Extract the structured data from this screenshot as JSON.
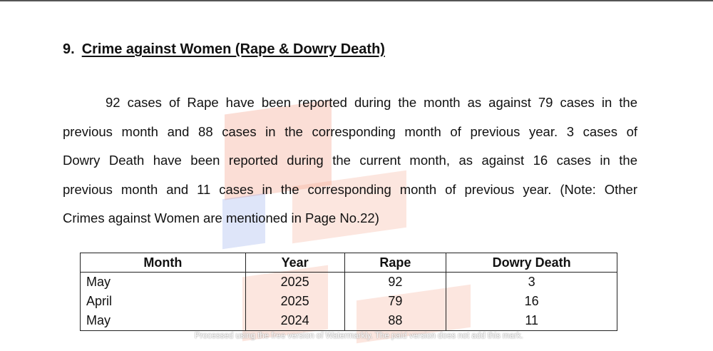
{
  "section": {
    "number": "9.",
    "title": "Crime against Women (Rape & Dowry Death)"
  },
  "paragraph_lines": [
    "92 cases of Rape have been reported during the month as against 79 cases in the",
    "previous month and 88 cases in the corresponding month of previous year. 3 cases of",
    "Dowry Death have been reported during the current month, as against 16 cases in the",
    "previous month and 11 cases in the corresponding month of previous year. (Note: Other",
    "Crimes against Women are mentioned in Page No.22)"
  ],
  "table": {
    "headers": [
      "Month",
      "Year",
      "Rape",
      "Dowry Death"
    ],
    "rows": [
      [
        "May",
        "2025",
        "92",
        "3"
      ],
      [
        "April",
        "2025",
        "79",
        "16"
      ],
      [
        "May",
        "2024",
        "88",
        "11"
      ]
    ]
  },
  "watermark_text": "Processed using the free version of Watermarkly. The paid version does not add this mark."
}
